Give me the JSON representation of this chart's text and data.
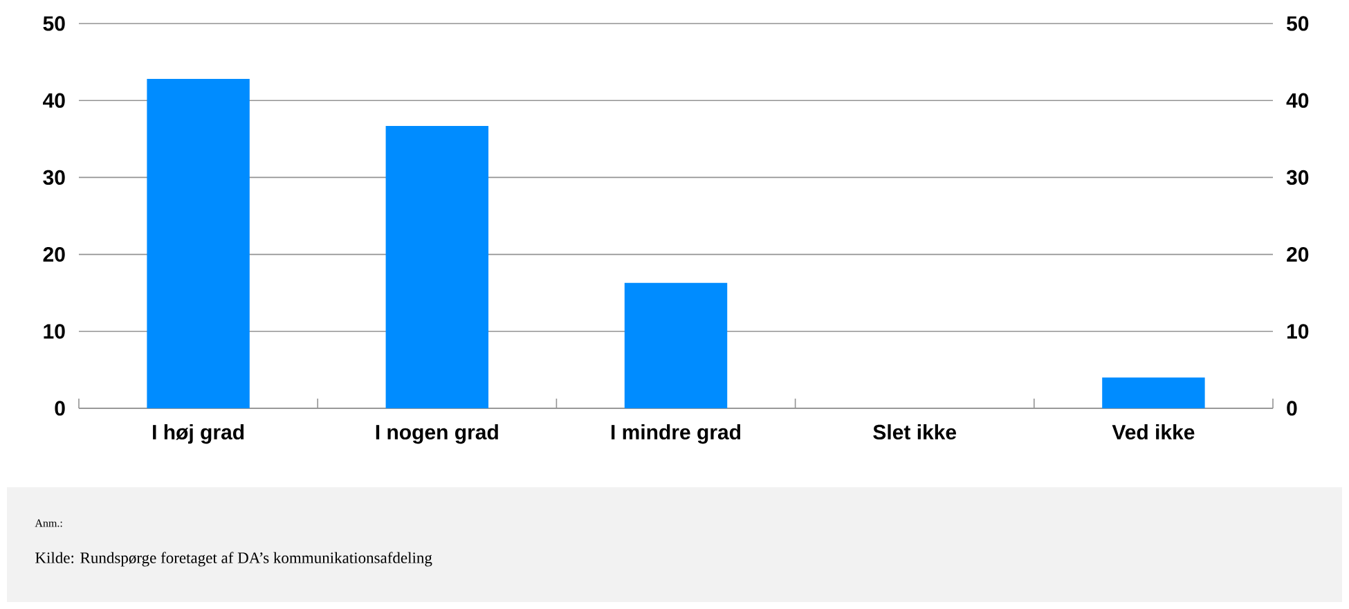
{
  "chart_data": {
    "type": "bar",
    "categories": [
      "I høj grad",
      "I nogen grad",
      "I mindre grad",
      "Slet ikke",
      "Ved ikke"
    ],
    "values": [
      42.8,
      36.7,
      16.3,
      0,
      4.0
    ],
    "color": "#008cff",
    "ylim": [
      0,
      50
    ],
    "yticks": [
      0,
      10,
      20,
      30,
      40,
      50
    ],
    "y2lim": [
      0,
      50
    ],
    "y2ticks": [
      0,
      10,
      20,
      30,
      40,
      50
    ],
    "grid": "y",
    "annotations": [
      "Anm.:",
      "Kilde: Rundspørge foretaget af DA’s kommunikationsafdeling"
    ]
  }
}
